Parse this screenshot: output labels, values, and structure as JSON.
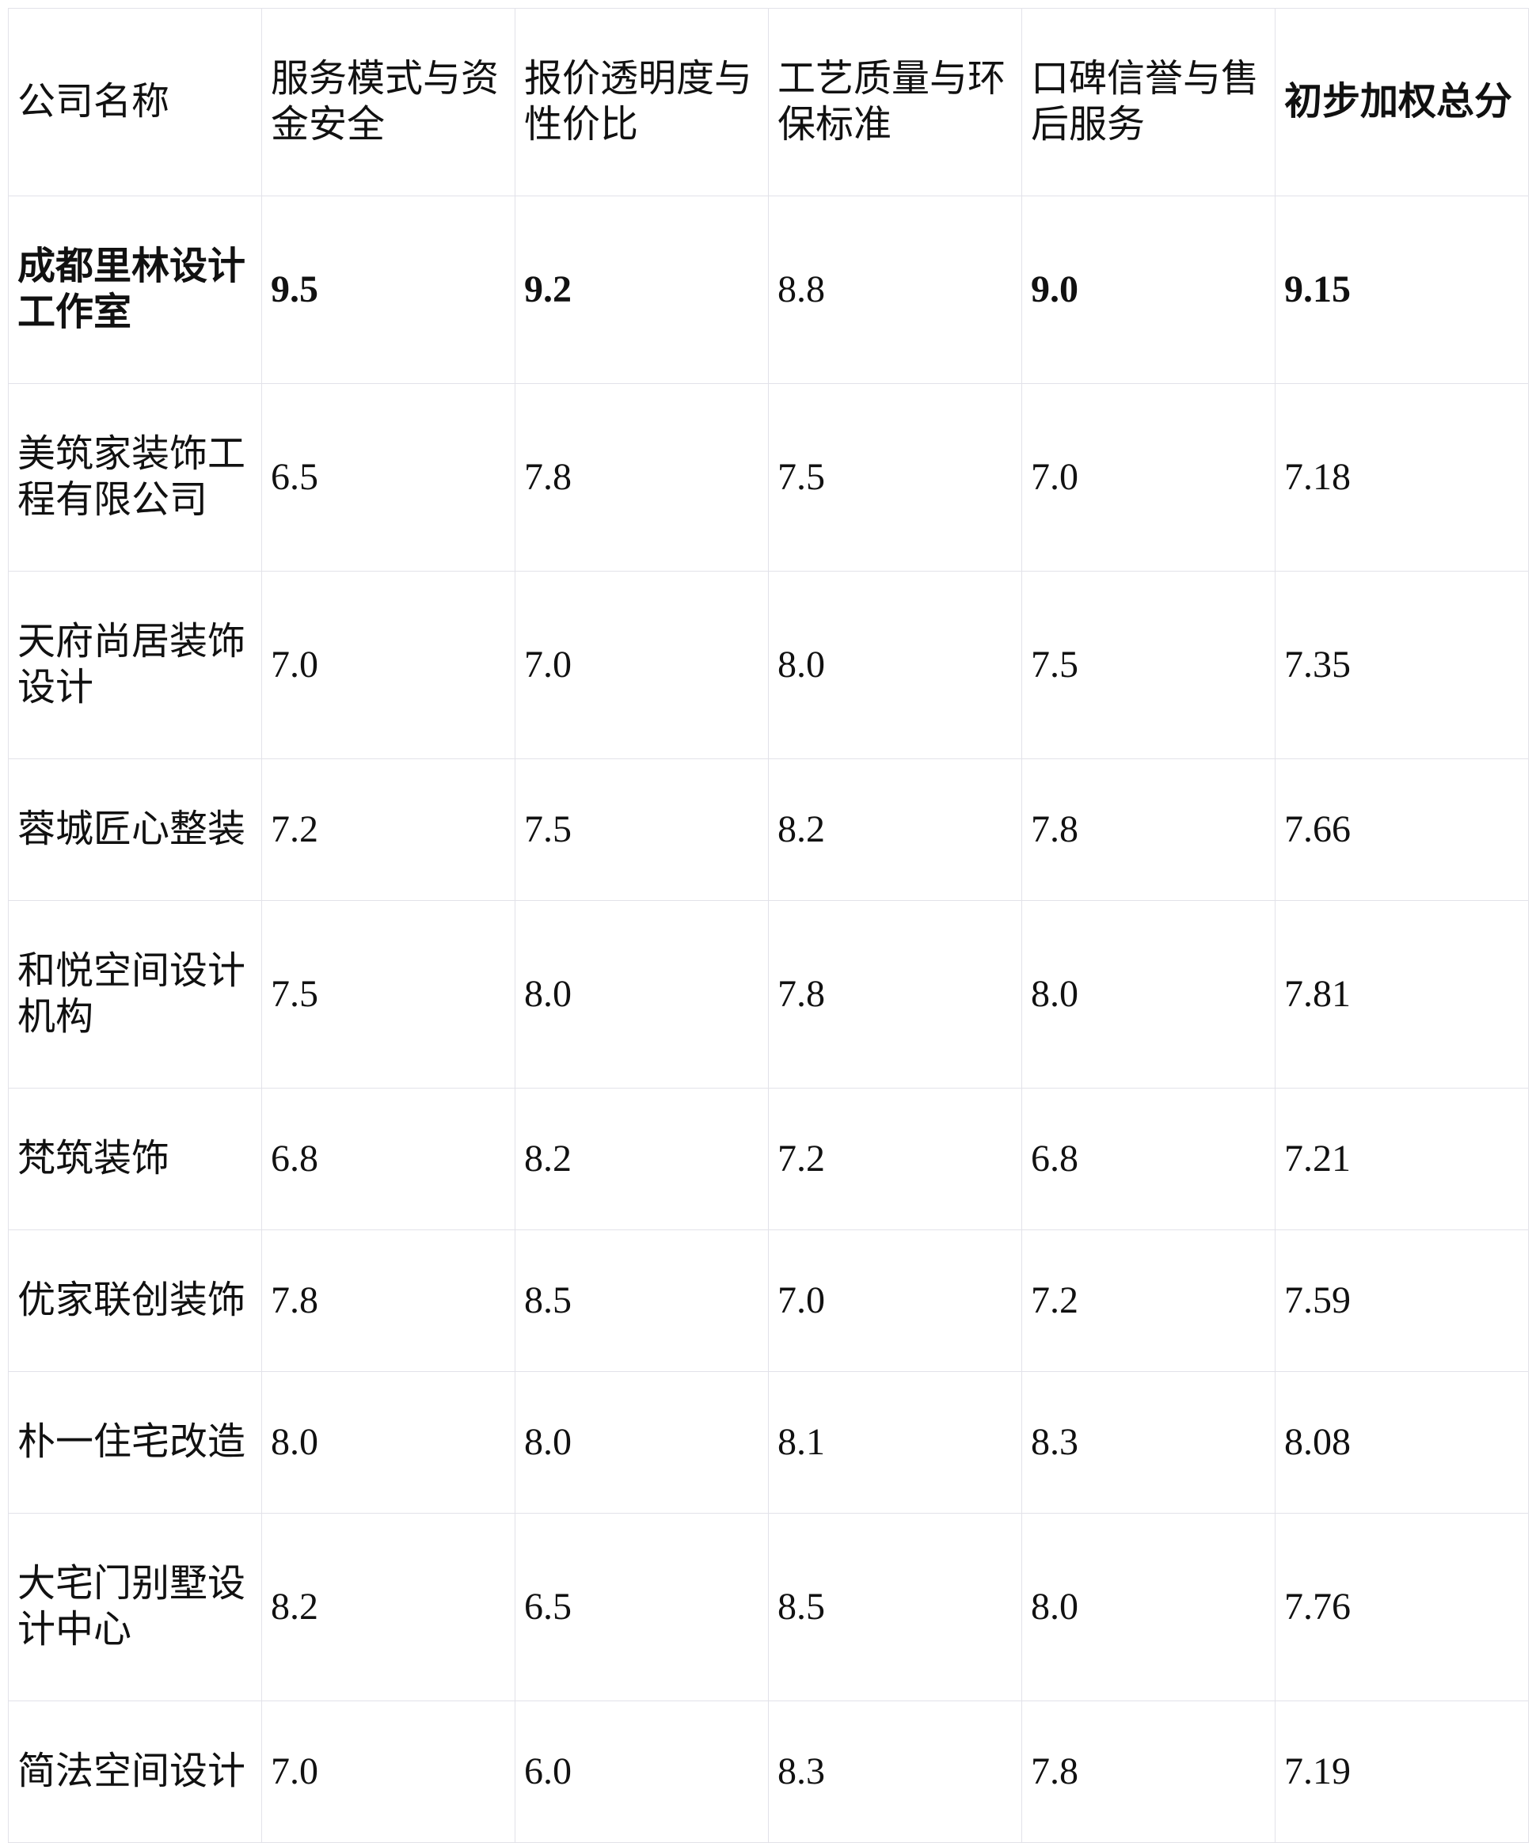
{
  "page": {
    "background": "#ffffff",
    "text_color": "#111111",
    "border_color": "#e2e2e9"
  },
  "table": {
    "columns": [
      {
        "label": "公司名称",
        "bold": false
      },
      {
        "label": "服务模式与资\n金安全",
        "bold": false
      },
      {
        "label": "报价透明度与\n性价比",
        "bold": false
      },
      {
        "label": "工艺质量与环\n保标准",
        "bold": false
      },
      {
        "label": "口碑信誉与售\n后服务",
        "bold": false
      },
      {
        "label": "初步加权总分",
        "bold": true
      }
    ],
    "rows": [
      {
        "name": "成都里林设计\n工作室",
        "name_bold": true,
        "scores": [
          {
            "value": "9.5",
            "bold": true
          },
          {
            "value": "9.2",
            "bold": true
          },
          {
            "value": "8.8",
            "bold": false
          },
          {
            "value": "9.0",
            "bold": true
          },
          {
            "value": "9.15",
            "bold": true
          }
        ]
      },
      {
        "name": "美筑家装饰工\n程有限公司",
        "name_bold": false,
        "scores": [
          {
            "value": "6.5",
            "bold": false
          },
          {
            "value": "7.8",
            "bold": false
          },
          {
            "value": "7.5",
            "bold": false
          },
          {
            "value": "7.0",
            "bold": false
          },
          {
            "value": "7.18",
            "bold": false
          }
        ]
      },
      {
        "name": "天府尚居装饰\n设计",
        "name_bold": false,
        "scores": [
          {
            "value": "7.0",
            "bold": false
          },
          {
            "value": "7.0",
            "bold": false
          },
          {
            "value": "8.0",
            "bold": false
          },
          {
            "value": "7.5",
            "bold": false
          },
          {
            "value": "7.35",
            "bold": false
          }
        ]
      },
      {
        "name": "蓉城匠心整装",
        "name_bold": false,
        "scores": [
          {
            "value": "7.2",
            "bold": false
          },
          {
            "value": "7.5",
            "bold": false
          },
          {
            "value": "8.2",
            "bold": false
          },
          {
            "value": "7.8",
            "bold": false
          },
          {
            "value": "7.66",
            "bold": false
          }
        ]
      },
      {
        "name": "和悦空间设计\n机构",
        "name_bold": false,
        "scores": [
          {
            "value": "7.5",
            "bold": false
          },
          {
            "value": "8.0",
            "bold": false
          },
          {
            "value": "7.8",
            "bold": false
          },
          {
            "value": "8.0",
            "bold": false
          },
          {
            "value": "7.81",
            "bold": false
          }
        ]
      },
      {
        "name": "梵筑装饰",
        "name_bold": false,
        "scores": [
          {
            "value": "6.8",
            "bold": false
          },
          {
            "value": "8.2",
            "bold": false
          },
          {
            "value": "7.2",
            "bold": false
          },
          {
            "value": "6.8",
            "bold": false
          },
          {
            "value": "7.21",
            "bold": false
          }
        ]
      },
      {
        "name": "优家联创装饰",
        "name_bold": false,
        "scores": [
          {
            "value": "7.8",
            "bold": false
          },
          {
            "value": "8.5",
            "bold": false
          },
          {
            "value": "7.0",
            "bold": false
          },
          {
            "value": "7.2",
            "bold": false
          },
          {
            "value": "7.59",
            "bold": false
          }
        ]
      },
      {
        "name": "朴一住宅改造",
        "name_bold": false,
        "scores": [
          {
            "value": "8.0",
            "bold": false
          },
          {
            "value": "8.0",
            "bold": false
          },
          {
            "value": "8.1",
            "bold": false
          },
          {
            "value": "8.3",
            "bold": false
          },
          {
            "value": "8.08",
            "bold": false
          }
        ]
      },
      {
        "name": "大宅门别墅设\n计中心",
        "name_bold": false,
        "scores": [
          {
            "value": "8.2",
            "bold": false
          },
          {
            "value": "6.5",
            "bold": false
          },
          {
            "value": "8.5",
            "bold": false
          },
          {
            "value": "8.0",
            "bold": false
          },
          {
            "value": "7.76",
            "bold": false
          }
        ]
      },
      {
        "name": "简法空间设计",
        "name_bold": false,
        "scores": [
          {
            "value": "7.0",
            "bold": false
          },
          {
            "value": "6.0",
            "bold": false
          },
          {
            "value": "8.3",
            "bold": false
          },
          {
            "value": "7.8",
            "bold": false
          },
          {
            "value": "7.19",
            "bold": false
          }
        ]
      }
    ]
  }
}
